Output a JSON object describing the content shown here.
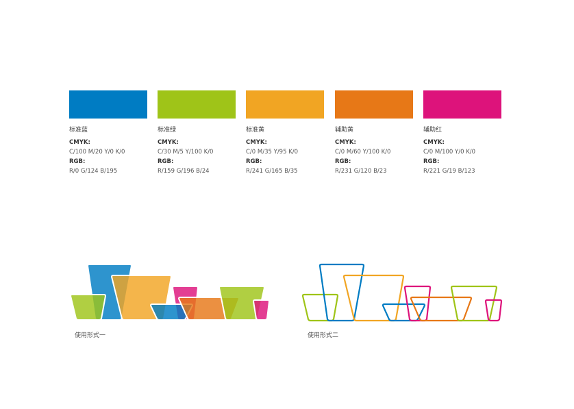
{
  "swatches": [
    {
      "name": "标准蓝",
      "cmyk_label": "CMYK:",
      "cmyk": "C/100  M/20  Y/0  K/0",
      "rgb_label": "RGB:",
      "rgb": "R/0  G/124  B/195",
      "color": "#007CC3"
    },
    {
      "name": "标准绿",
      "cmyk_label": "CMYK:",
      "cmyk": "C/30  M/5  Y/100  K/0",
      "rgb_label": "RGB:",
      "rgb": "R/159  G/196  B/24",
      "color": "#9FC418"
    },
    {
      "name": "标准黄",
      "cmyk_label": "CMYK:",
      "cmyk": "C/0  M/35  Y/95  K/0",
      "rgb_label": "RGB:",
      "rgb": "R/241  G/165  B/35",
      "color": "#F1A523"
    },
    {
      "name": "辅助黄",
      "cmyk_label": "CMYK:",
      "cmyk": "C/0  M/60  Y/100  K/0",
      "rgb_label": "RGB:",
      "rgb": "R/231  G/120  B/23",
      "color": "#E77817"
    },
    {
      "name": "辅助红",
      "cmyk_label": "CMYK:",
      "cmyk": "C/0  M/100  Y/0  K/0",
      "rgb_label": "RGB:",
      "rgb": "R/221  G/19  B/123",
      "color": "#DD137B"
    }
  ],
  "usage": [
    {
      "caption": "使用形式一",
      "style": "filled"
    },
    {
      "caption": "使用形式二",
      "style": "outline"
    }
  ],
  "logo_shape_colors": [
    "#9FC418",
    "#007CC3",
    "#F1A523",
    "#007CC3",
    "#DD137B",
    "#E77817",
    "#9FC418",
    "#DD137B"
  ]
}
